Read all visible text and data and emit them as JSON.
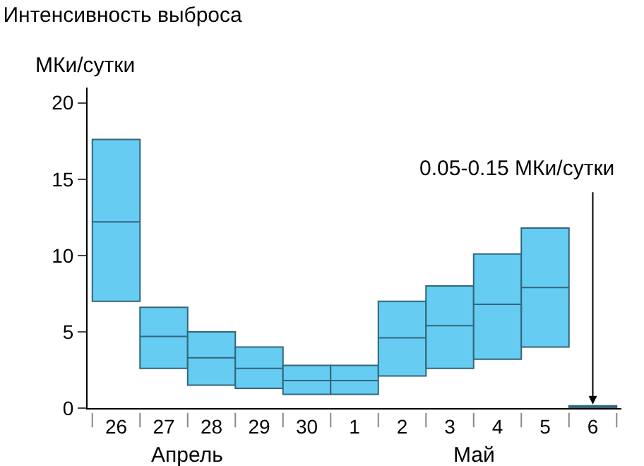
{
  "chart_data": {
    "type": "box",
    "title": "Интенсивность выброса",
    "ylabel": "МКи/сутки",
    "categories": [
      "26",
      "27",
      "28",
      "29",
      "30",
      "1",
      "2",
      "3",
      "4",
      "5",
      "6"
    ],
    "boxes": [
      {
        "low": 7.0,
        "q1": 7.0,
        "median": 12.2,
        "q3": 17.6,
        "high": 17.6
      },
      {
        "low": 2.6,
        "q1": 2.6,
        "median": 4.7,
        "q3": 6.6,
        "high": 6.6
      },
      {
        "low": 1.5,
        "q1": 1.5,
        "median": 3.3,
        "q3": 5.0,
        "high": 5.0
      },
      {
        "low": 1.3,
        "q1": 1.3,
        "median": 2.6,
        "q3": 4.0,
        "high": 4.0
      },
      {
        "low": 0.9,
        "q1": 0.9,
        "median": 1.8,
        "q3": 2.8,
        "high": 2.8
      },
      {
        "low": 0.9,
        "q1": 0.9,
        "median": 1.8,
        "q3": 2.8,
        "high": 2.8
      },
      {
        "low": 2.1,
        "q1": 2.1,
        "median": 4.6,
        "q3": 7.0,
        "high": 7.0
      },
      {
        "low": 2.6,
        "q1": 2.6,
        "median": 5.4,
        "q3": 8.0,
        "high": 8.0
      },
      {
        "low": 3.2,
        "q1": 3.2,
        "median": 6.8,
        "q3": 10.1,
        "high": 10.1
      },
      {
        "low": 4.0,
        "q1": 4.0,
        "median": 7.9,
        "q3": 11.8,
        "high": 11.8
      },
      {
        "low": 0.05,
        "q1": 0.05,
        "median": 0.1,
        "q3": 0.15,
        "high": 0.15
      }
    ],
    "color": "#66ccf2",
    "ylim": [
      0,
      21
    ],
    "yticks": [
      0,
      5,
      10,
      15,
      20
    ],
    "grid": false,
    "annotations": [
      "0.05-0.15 МКи/сутки",
      "Апрель",
      "Май"
    ]
  }
}
